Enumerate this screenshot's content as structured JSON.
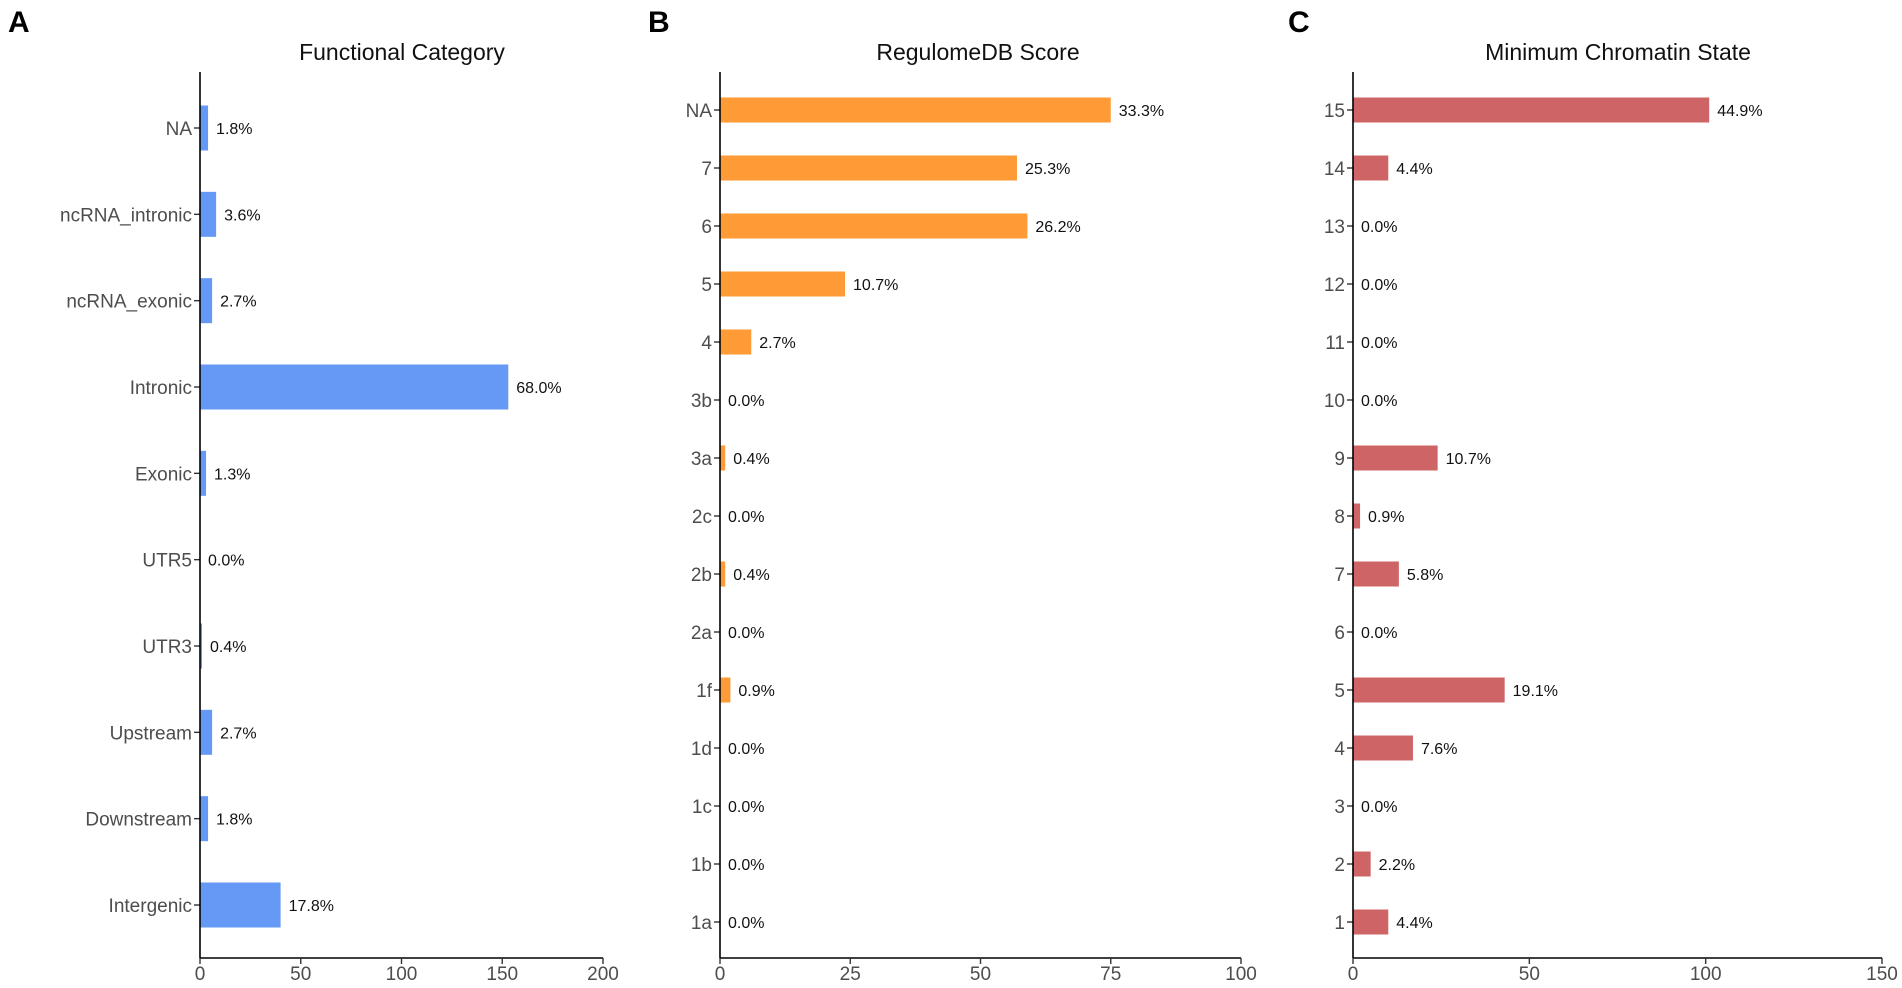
{
  "chart_data": [
    {
      "panel": "A",
      "type": "bar",
      "orientation": "horizontal",
      "title": "Functional Category",
      "categories": [
        "NA",
        "ncRNA_intronic",
        "ncRNA_exonic",
        "Intronic",
        "Exonic",
        "UTR5",
        "UTR3",
        "Upstream",
        "Downstream",
        "Intergenic"
      ],
      "values": [
        4,
        8,
        6,
        153,
        3,
        0,
        1,
        6,
        4,
        40
      ],
      "labels": [
        "1.8%",
        "3.6%",
        "2.7%",
        "68.0%",
        "1.3%",
        "0.0%",
        "0.4%",
        "2.7%",
        "1.8%",
        "17.8%"
      ],
      "xticks": [
        "0",
        "50",
        "100",
        "150",
        "200"
      ],
      "xlim": [
        0,
        200
      ],
      "color": "#6699F5",
      "xlabel": "",
      "ylabel": ""
    },
    {
      "panel": "B",
      "type": "bar",
      "orientation": "horizontal",
      "title": "RegulomeDB Score",
      "categories": [
        "NA",
        "7",
        "6",
        "5",
        "4",
        "3b",
        "3a",
        "2c",
        "2b",
        "2a",
        "1f",
        "1d",
        "1c",
        "1b",
        "1a"
      ],
      "values": [
        75,
        57,
        59,
        24,
        6,
        0,
        1,
        0,
        1,
        0,
        2,
        0,
        0,
        0,
        0
      ],
      "labels": [
        "33.3%",
        "25.3%",
        "26.2%",
        "10.7%",
        "2.7%",
        "0.0%",
        "0.4%",
        "0.0%",
        "0.4%",
        "0.0%",
        "0.9%",
        "0.0%",
        "0.0%",
        "0.0%",
        "0.0%"
      ],
      "xticks": [
        "0",
        "25",
        "50",
        "75",
        "100"
      ],
      "xlim": [
        0,
        100
      ],
      "color": "#FF9B36",
      "xlabel": "",
      "ylabel": ""
    },
    {
      "panel": "C",
      "type": "bar",
      "orientation": "horizontal",
      "title": "Minimum Chromatin State",
      "categories": [
        "15",
        "14",
        "13",
        "12",
        "11",
        "10",
        "9",
        "8",
        "7",
        "6",
        "5",
        "4",
        "3",
        "2",
        "1"
      ],
      "values": [
        101,
        10,
        0,
        0,
        0,
        0,
        24,
        2,
        13,
        0,
        43,
        17,
        0,
        5,
        10
      ],
      "labels": [
        "44.9%",
        "4.4%",
        "0.0%",
        "0.0%",
        "0.0%",
        "0.0%",
        "10.7%",
        "0.9%",
        "5.8%",
        "0.0%",
        "19.1%",
        "7.6%",
        "0.0%",
        "2.2%",
        "4.4%"
      ],
      "xticks": [
        "0",
        "50",
        "100",
        "150"
      ],
      "xlim": [
        0,
        150
      ],
      "color": "#CF6466",
      "xlabel": "",
      "ylabel": ""
    }
  ]
}
